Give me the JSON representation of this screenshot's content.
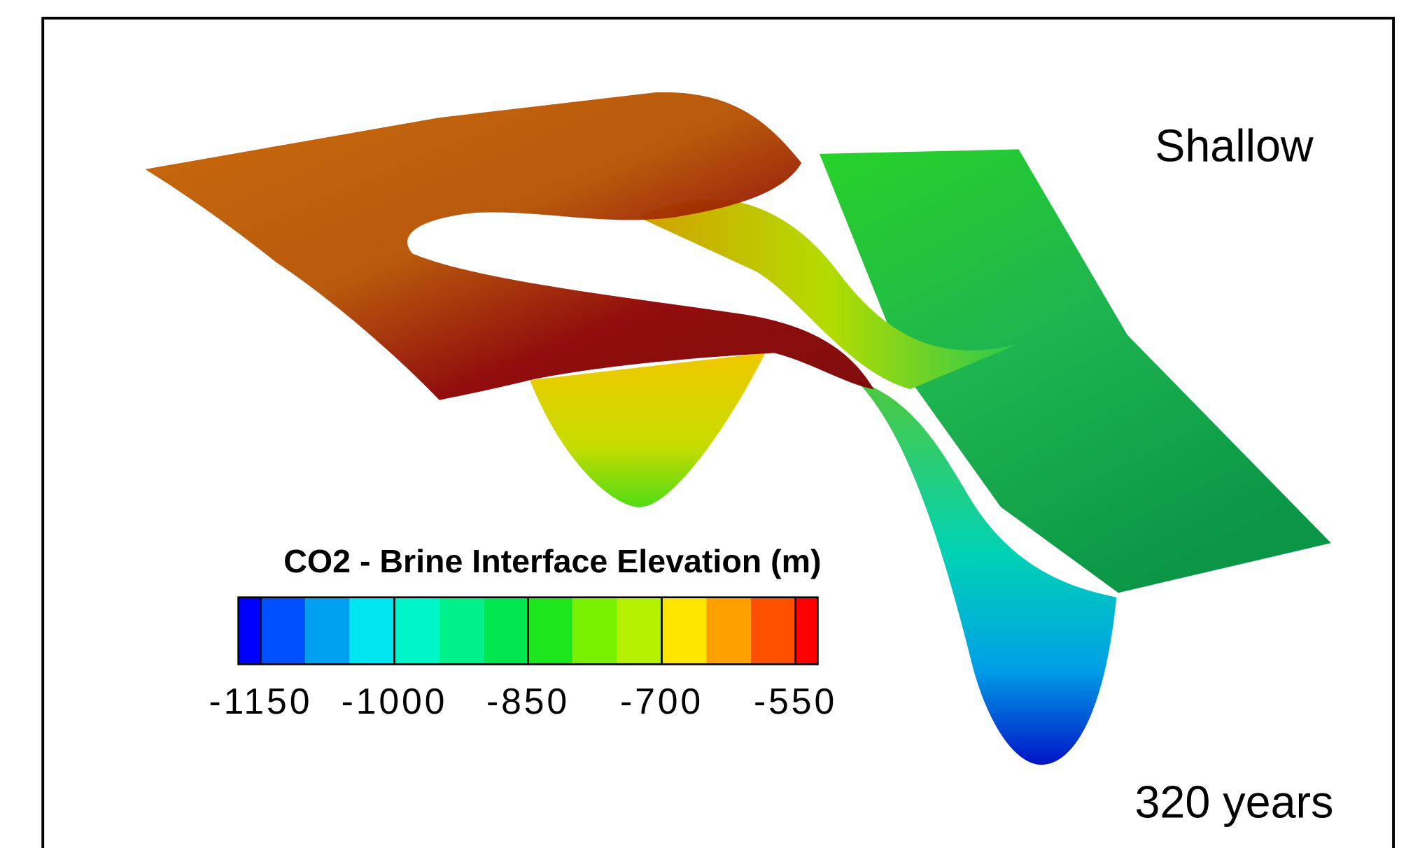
{
  "chart_data": {
    "type": "contour-surface",
    "annotations": [
      "Shallow",
      "320 years"
    ],
    "colorbar": {
      "title": "CO2 - Brine Interface Elevation (m)",
      "lim": [
        -1175,
        -525
      ],
      "levels": [
        -1150,
        -1100,
        -1050,
        -1000,
        -950,
        -900,
        -850,
        -800,
        -750,
        -700,
        -650,
        -600,
        -550
      ],
      "colors": [
        "#0000ff",
        "#0050ff",
        "#00a0f0",
        "#00e6f0",
        "#00f5c8",
        "#00f08c",
        "#00e650",
        "#1ee61e",
        "#78f000",
        "#b4f000",
        "#ffe600",
        "#ffa000",
        "#ff5000",
        "#ff0000"
      ],
      "ticks": [
        -1150,
        -1000,
        -850,
        -700,
        -550
      ]
    }
  }
}
